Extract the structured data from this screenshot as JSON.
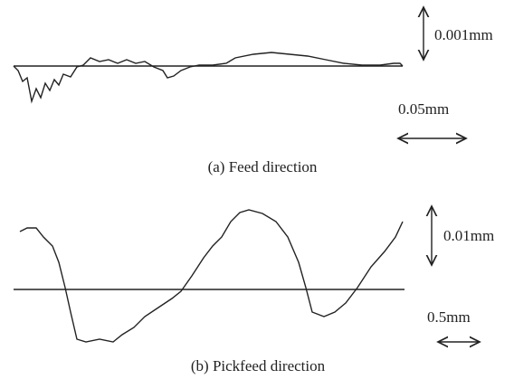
{
  "panel_a": {
    "scale_vertical": "0.001mm",
    "scale_horizontal": "0.05mm",
    "caption": "(a) Feed direction"
  },
  "panel_b": {
    "scale_vertical": "0.01mm",
    "scale_horizontal": "0.5mm",
    "caption": "(b) Pickfeed direction"
  }
}
